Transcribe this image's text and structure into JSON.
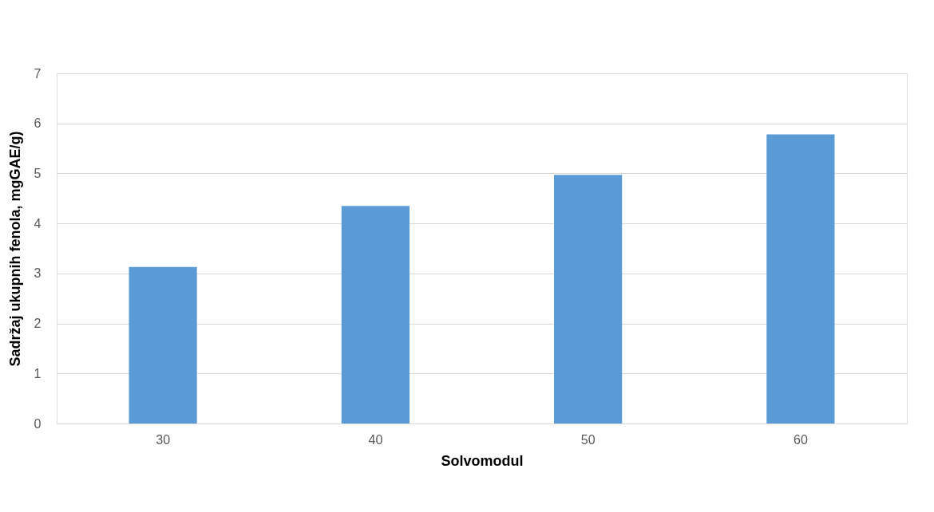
{
  "chart_data": {
    "type": "bar",
    "categories": [
      "30",
      "40",
      "50",
      "60"
    ],
    "values": [
      3.13,
      4.35,
      4.97,
      5.78
    ],
    "color": "#5b9bd5",
    "xlabel": "Solvomodul",
    "ylabel": "Sadržaj ukupnih fenola, mgGAE/g)",
    "ylim": [
      0,
      7
    ],
    "yticks": [
      0,
      1,
      2,
      3,
      4,
      5,
      6,
      7
    ],
    "grid": "y"
  }
}
